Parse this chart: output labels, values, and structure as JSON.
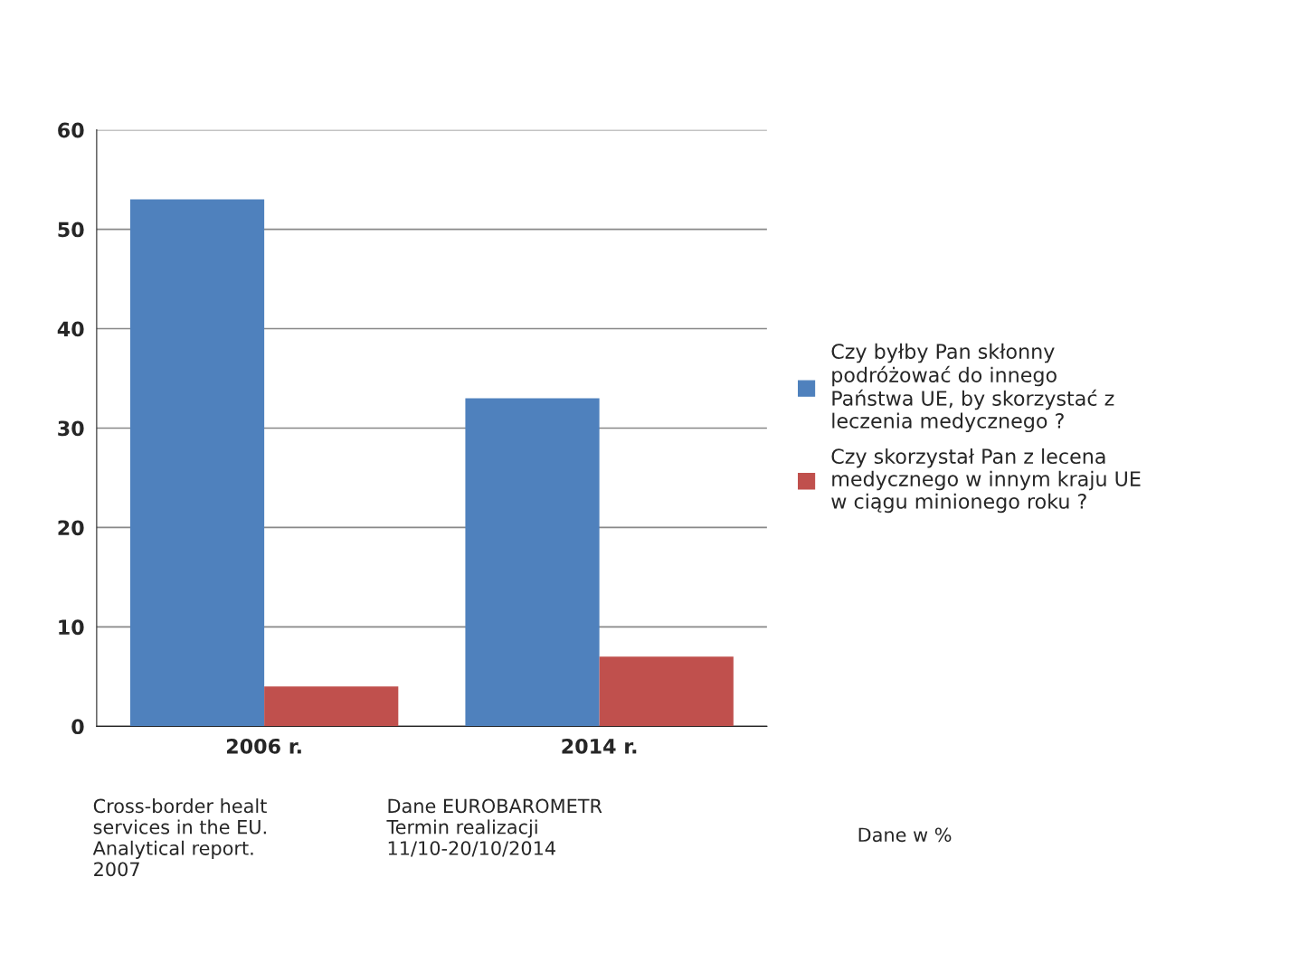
{
  "chart_data": {
    "type": "bar",
    "categories": [
      "2006 r.",
      "2014 r."
    ],
    "series": [
      {
        "name": "Czy byłby Pan skłonny\npodróżować do innego\nPaństwa UE, by skorzystać z\nleczenia medycznego ?",
        "color": "#4f81bd",
        "values": [
          53,
          33
        ]
      },
      {
        "name": "Czy skorzystał Pan z lecena\nmedycznego w innym kraju UE\nw ciągu minionego roku ?",
        "color": "#c0504d",
        "values": [
          4,
          7
        ]
      }
    ],
    "ylim": [
      0,
      60
    ],
    "yticks": [
      0,
      10,
      20,
      30,
      40,
      50,
      60
    ],
    "grid": "y",
    "legend": "right",
    "annotations": [
      "Cross-border healt\nservices in the EU.\nAnalytical report.\n2007",
      "Dane EUROBAROMETR\nTermin realizacji\n11/10-20/10/2014",
      "Dane w %"
    ]
  }
}
